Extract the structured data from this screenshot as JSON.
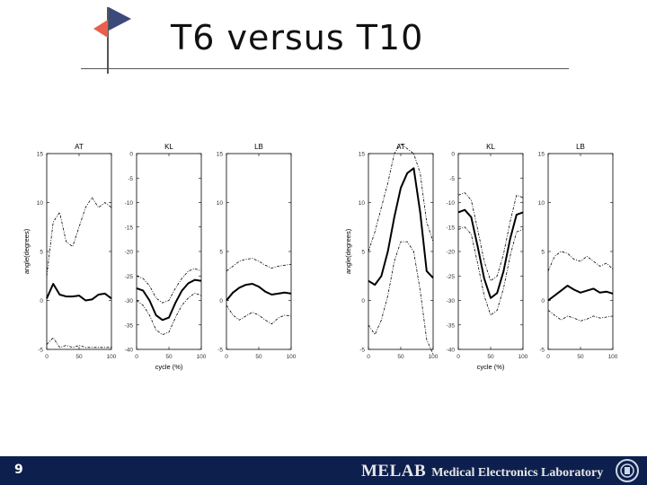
{
  "slide": {
    "title": "T6 versus T10",
    "page_number": "9",
    "lab_short": "MELAB",
    "lab_full": "Medical Electronics Laboratory",
    "colors": {
      "footer": "#0d1f4d",
      "flag_blue": "#3b4a7a",
      "flag_red": "#e8604c"
    }
  },
  "chart_data": [
    {
      "type": "line",
      "group": "T6",
      "title": "AT",
      "ylabel": "angle(degrees)",
      "xlabel": "",
      "xlim": [
        0,
        100
      ],
      "ylim": [
        -5,
        15
      ],
      "xticks": [
        "0",
        "50",
        "100"
      ],
      "yticks": [
        "-5",
        "0",
        "5",
        "10",
        "15"
      ],
      "x": [
        0,
        10,
        20,
        30,
        40,
        50,
        60,
        70,
        80,
        90,
        100
      ],
      "series": [
        {
          "name": "mean",
          "values": [
            0.2,
            1.7,
            0.6,
            0.4,
            0.4,
            0.5,
            0.0,
            0.1,
            0.6,
            0.7,
            0.2
          ]
        },
        {
          "name": "upper",
          "values": [
            2.5,
            8.0,
            9.0,
            6.0,
            5.5,
            7.5,
            9.5,
            10.5,
            9.5,
            10.0,
            9.5
          ]
        },
        {
          "name": "lower",
          "values": [
            -4.5,
            -3.8,
            -4.8,
            -4.6,
            -4.8,
            -4.6,
            -4.8,
            -4.8,
            -4.8,
            -4.8,
            -4.8
          ]
        }
      ]
    },
    {
      "type": "line",
      "group": "T6",
      "title": "KL",
      "ylabel": "",
      "xlabel": "cycle (%)",
      "xlim": [
        0,
        100
      ],
      "ylim": [
        -40,
        0
      ],
      "xticks": [
        "0",
        "50",
        "100"
      ],
      "yticks": [
        "-40",
        "-35",
        "-30",
        "-25",
        "-20",
        "-15",
        "-10",
        "-5",
        "0"
      ],
      "x": [
        0,
        10,
        20,
        30,
        40,
        50,
        60,
        70,
        80,
        90,
        100
      ],
      "series": [
        {
          "name": "mean",
          "values": [
            -27.5,
            -28.0,
            -30.0,
            -33.0,
            -34.0,
            -33.5,
            -30.5,
            -28.0,
            -26.5,
            -25.8,
            -26.0
          ]
        },
        {
          "name": "upper",
          "values": [
            -25.0,
            -25.5,
            -27.0,
            -29.5,
            -30.5,
            -30.0,
            -27.5,
            -25.5,
            -24.0,
            -23.5,
            -24.0
          ]
        },
        {
          "name": "lower",
          "values": [
            -30.0,
            -31.0,
            -33.0,
            -36.0,
            -37.0,
            -36.5,
            -33.5,
            -31.0,
            -29.5,
            -28.5,
            -29.0
          ]
        }
      ]
    },
    {
      "type": "line",
      "group": "T6",
      "title": "LB",
      "ylabel": "",
      "xlabel": "",
      "xlim": [
        0,
        100
      ],
      "ylim": [
        -5,
        15
      ],
      "xticks": [
        "0",
        "50",
        "100"
      ],
      "yticks": [
        "-5",
        "0",
        "5",
        "10",
        "15"
      ],
      "x": [
        0,
        10,
        20,
        30,
        40,
        50,
        60,
        70,
        80,
        90,
        100
      ],
      "series": [
        {
          "name": "mean",
          "values": [
            0.0,
            0.8,
            1.3,
            1.6,
            1.7,
            1.4,
            0.9,
            0.6,
            0.7,
            0.8,
            0.7
          ]
        },
        {
          "name": "upper",
          "values": [
            3.0,
            3.5,
            4.0,
            4.2,
            4.3,
            4.0,
            3.6,
            3.3,
            3.5,
            3.6,
            3.7
          ]
        },
        {
          "name": "lower",
          "values": [
            -0.5,
            -1.5,
            -2.0,
            -1.6,
            -1.2,
            -1.5,
            -2.0,
            -2.4,
            -1.8,
            -1.5,
            -1.6
          ]
        }
      ]
    },
    {
      "type": "line",
      "group": "T10",
      "title": "AT",
      "ylabel": "angle(degrees)",
      "xlabel": "",
      "xlim": [
        0,
        100
      ],
      "ylim": [
        -5,
        15
      ],
      "xticks": [
        "0",
        "50",
        "100"
      ],
      "yticks": [
        "-5",
        "0",
        "5",
        "10",
        "15"
      ],
      "x": [
        0,
        10,
        20,
        30,
        40,
        50,
        60,
        70,
        80,
        90,
        100
      ],
      "series": [
        {
          "name": "mean",
          "values": [
            2.0,
            1.6,
            2.5,
            5.0,
            8.5,
            11.5,
            13.0,
            13.5,
            9.0,
            3.0,
            2.3
          ]
        },
        {
          "name": "upper",
          "values": [
            5.0,
            7.0,
            9.5,
            12.0,
            15.0,
            16.0,
            15.5,
            15.0,
            13.0,
            8.0,
            6.0
          ]
        },
        {
          "name": "lower",
          "values": [
            -2.5,
            -3.5,
            -2.0,
            0.5,
            4.0,
            6.0,
            6.0,
            5.0,
            1.0,
            -4.0,
            -5.5
          ]
        }
      ]
    },
    {
      "type": "line",
      "group": "T10",
      "title": "KL",
      "ylabel": "",
      "xlabel": "cycle (%)",
      "xlim": [
        0,
        100
      ],
      "ylim": [
        -40,
        0
      ],
      "xticks": [
        "0",
        "50",
        "100"
      ],
      "yticks": [
        "-40",
        "-35",
        "-30",
        "-25",
        "-20",
        "-15",
        "-10",
        "-5",
        "0"
      ],
      "x": [
        0,
        10,
        20,
        30,
        40,
        50,
        60,
        70,
        80,
        90,
        100
      ],
      "series": [
        {
          "name": "mean",
          "values": [
            -12.0,
            -11.5,
            -13.0,
            -19.0,
            -25.5,
            -29.5,
            -28.5,
            -24.0,
            -17.5,
            -12.5,
            -12.0
          ]
        },
        {
          "name": "upper",
          "values": [
            -8.5,
            -8.0,
            -9.5,
            -15.5,
            -22.0,
            -26.0,
            -25.0,
            -20.5,
            -14.0,
            -8.5,
            -9.0
          ]
        },
        {
          "name": "lower",
          "values": [
            -15.5,
            -15.0,
            -16.5,
            -22.5,
            -29.0,
            -33.0,
            -32.0,
            -27.5,
            -21.0,
            -16.0,
            -15.5
          ]
        }
      ]
    },
    {
      "type": "line",
      "group": "T10",
      "title": "LB",
      "ylabel": "",
      "xlabel": "",
      "xlim": [
        0,
        100
      ],
      "ylim": [
        -5,
        15
      ],
      "xticks": [
        "0",
        "50",
        "100"
      ],
      "yticks": [
        "-5",
        "0",
        "5",
        "10",
        "15"
      ],
      "x": [
        0,
        10,
        20,
        30,
        40,
        50,
        60,
        70,
        80,
        90,
        100
      ],
      "series": [
        {
          "name": "mean",
          "values": [
            0.0,
            0.5,
            1.0,
            1.5,
            1.1,
            0.8,
            1.0,
            1.2,
            0.8,
            0.9,
            0.7
          ]
        },
        {
          "name": "upper",
          "values": [
            3.0,
            4.5,
            5.0,
            4.8,
            4.2,
            4.0,
            4.5,
            4.0,
            3.5,
            3.8,
            3.2
          ]
        },
        {
          "name": "lower",
          "values": [
            -1.0,
            -1.5,
            -2.0,
            -1.6,
            -1.8,
            -2.1,
            -1.9,
            -1.6,
            -1.8,
            -1.7,
            -1.6
          ]
        }
      ]
    }
  ]
}
